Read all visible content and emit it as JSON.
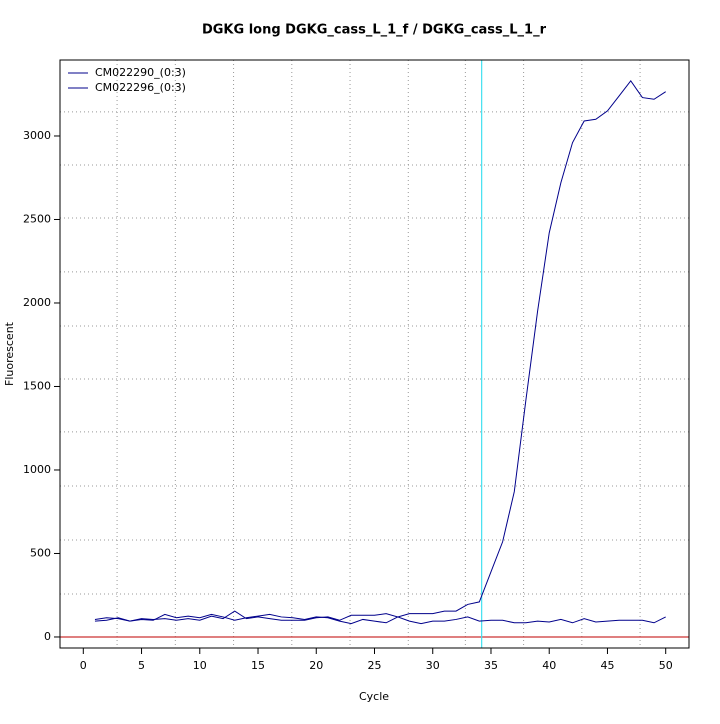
{
  "chart_data": {
    "type": "line",
    "title": "DGKG long DGKG_cass_L_1_f / DGKG_cass_L_1_r",
    "x_label": "Cycle",
    "y_label": "Fluorescent",
    "x": [
      1,
      2,
      3,
      4,
      5,
      6,
      7,
      8,
      9,
      10,
      11,
      12,
      13,
      14,
      15,
      16,
      17,
      18,
      19,
      20,
      21,
      22,
      23,
      24,
      25,
      26,
      27,
      28,
      29,
      30,
      31,
      32,
      33,
      34,
      35,
      36,
      37,
      38,
      39,
      40,
      41,
      42,
      43,
      44,
      45,
      46,
      47,
      48,
      49,
      50
    ],
    "series": [
      {
        "name": "CM022290_(0:3)",
        "color": "#00008b",
        "values": [
          105,
          115,
          110,
          95,
          110,
          105,
          110,
          100,
          110,
          100,
          125,
          110,
          155,
          110,
          120,
          110,
          100,
          100,
          100,
          115,
          120,
          100,
          130,
          130,
          130,
          140,
          120,
          140,
          140,
          140,
          155,
          155,
          195,
          210,
          390,
          570,
          870,
          1420,
          1950,
          2420,
          2720,
          2960,
          3090,
          3100,
          3150,
          3240,
          3330,
          3230,
          3220,
          3265
        ]
      },
      {
        "name": "CM022296_(0:3)",
        "color": "#00008b",
        "values": [
          95,
          100,
          115,
          95,
          105,
          100,
          135,
          115,
          125,
          115,
          135,
          120,
          100,
          115,
          125,
          135,
          120,
          115,
          105,
          120,
          115,
          95,
          80,
          105,
          95,
          85,
          120,
          95,
          80,
          95,
          95,
          105,
          120,
          95,
          100,
          100,
          85,
          85,
          95,
          90,
          105,
          85,
          110,
          90,
          95,
          100,
          100,
          100,
          85,
          120
        ]
      }
    ],
    "xlim": [
      -2,
      52
    ],
    "ylim": [
      -66,
      3455
    ],
    "xticks": [
      0,
      5,
      10,
      15,
      20,
      25,
      30,
      35,
      40,
      45,
      50
    ],
    "yticks": [
      0,
      500,
      1000,
      1500,
      2000,
      2500,
      3000
    ],
    "xgrid": [
      2.9,
      7.9,
      12.9,
      17.9,
      22.9,
      27.9,
      32.8,
      37.8,
      42.8,
      47.8
    ],
    "ygrid": [
      257,
      581,
      904,
      1228,
      1545,
      1862,
      2186,
      2509,
      2826,
      3144
    ],
    "threshold_x": 34.2,
    "threshold_color": "#40e0f0",
    "baseline_y": 0,
    "baseline_color": "#cc3333",
    "legend": "top-left"
  }
}
